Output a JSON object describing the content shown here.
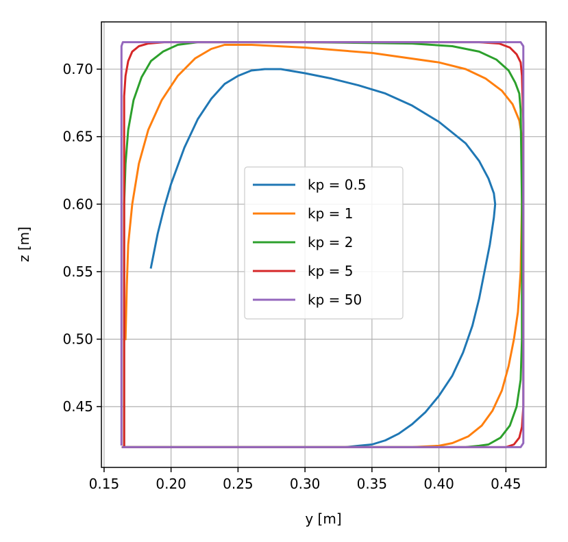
{
  "chart_data": {
    "type": "line",
    "title": "",
    "xlabel": "y [m]",
    "ylabel": "z [m]",
    "xlim": [
      0.148,
      0.48
    ],
    "ylim": [
      0.405,
      0.735
    ],
    "xticks": [
      0.15,
      0.2,
      0.25,
      0.3,
      0.35,
      0.4,
      0.45
    ],
    "xtick_labels": [
      "0.15",
      "0.20",
      "0.25",
      "0.30",
      "0.35",
      "0.40",
      "0.45"
    ],
    "yticks": [
      0.45,
      0.5,
      0.55,
      0.6,
      0.65,
      0.7
    ],
    "ytick_labels": [
      "0.45",
      "0.50",
      "0.55",
      "0.60",
      "0.65",
      "0.70"
    ],
    "grid": true,
    "legend_position": "center",
    "series": [
      {
        "name": "kp = 0.5",
        "color": "#1f77b4",
        "points": [
          [
            0.185,
            0.553
          ],
          [
            0.19,
            0.578
          ],
          [
            0.195,
            0.598
          ],
          [
            0.2,
            0.615
          ],
          [
            0.21,
            0.642
          ],
          [
            0.22,
            0.663
          ],
          [
            0.23,
            0.678
          ],
          [
            0.24,
            0.689
          ],
          [
            0.25,
            0.695
          ],
          [
            0.26,
            0.699
          ],
          [
            0.27,
            0.7
          ],
          [
            0.282,
            0.7
          ],
          [
            0.3,
            0.697
          ],
          [
            0.32,
            0.693
          ],
          [
            0.34,
            0.688
          ],
          [
            0.36,
            0.682
          ],
          [
            0.38,
            0.673
          ],
          [
            0.4,
            0.661
          ],
          [
            0.42,
            0.645
          ],
          [
            0.43,
            0.632
          ],
          [
            0.437,
            0.619
          ],
          [
            0.441,
            0.608
          ],
          [
            0.442,
            0.6
          ],
          [
            0.441,
            0.59
          ],
          [
            0.438,
            0.57
          ],
          [
            0.434,
            0.55
          ],
          [
            0.43,
            0.53
          ],
          [
            0.425,
            0.51
          ],
          [
            0.418,
            0.49
          ],
          [
            0.41,
            0.473
          ],
          [
            0.4,
            0.458
          ],
          [
            0.39,
            0.446
          ],
          [
            0.38,
            0.437
          ],
          [
            0.37,
            0.43
          ],
          [
            0.36,
            0.425
          ],
          [
            0.35,
            0.422
          ],
          [
            0.34,
            0.421
          ],
          [
            0.33,
            0.42
          ],
          [
            0.2,
            0.42
          ],
          [
            0.164,
            0.42
          ]
        ]
      },
      {
        "name": "kp = 1",
        "color": "#ff7f0e",
        "points": [
          [
            0.166,
            0.5
          ],
          [
            0.167,
            0.54
          ],
          [
            0.168,
            0.57
          ],
          [
            0.171,
            0.6
          ],
          [
            0.176,
            0.63
          ],
          [
            0.183,
            0.655
          ],
          [
            0.193,
            0.677
          ],
          [
            0.205,
            0.695
          ],
          [
            0.218,
            0.708
          ],
          [
            0.23,
            0.715
          ],
          [
            0.24,
            0.718
          ],
          [
            0.26,
            0.718
          ],
          [
            0.3,
            0.716
          ],
          [
            0.35,
            0.712
          ],
          [
            0.4,
            0.705
          ],
          [
            0.42,
            0.7
          ],
          [
            0.435,
            0.693
          ],
          [
            0.447,
            0.684
          ],
          [
            0.455,
            0.674
          ],
          [
            0.46,
            0.662
          ],
          [
            0.462,
            0.65
          ],
          [
            0.462,
            0.6
          ],
          [
            0.461,
            0.55
          ],
          [
            0.459,
            0.52
          ],
          [
            0.456,
            0.5
          ],
          [
            0.452,
            0.48
          ],
          [
            0.447,
            0.462
          ],
          [
            0.44,
            0.447
          ],
          [
            0.432,
            0.436
          ],
          [
            0.422,
            0.428
          ],
          [
            0.41,
            0.423
          ],
          [
            0.4,
            0.421
          ],
          [
            0.38,
            0.42
          ],
          [
            0.164,
            0.42
          ]
        ]
      },
      {
        "name": "kp = 2",
        "color": "#2ca02c",
        "points": [
          [
            0.165,
            0.42
          ],
          [
            0.165,
            0.6
          ],
          [
            0.166,
            0.63
          ],
          [
            0.168,
            0.655
          ],
          [
            0.172,
            0.677
          ],
          [
            0.178,
            0.694
          ],
          [
            0.185,
            0.706
          ],
          [
            0.194,
            0.713
          ],
          [
            0.205,
            0.718
          ],
          [
            0.22,
            0.72
          ],
          [
            0.3,
            0.72
          ],
          [
            0.38,
            0.719
          ],
          [
            0.41,
            0.717
          ],
          [
            0.43,
            0.713
          ],
          [
            0.443,
            0.707
          ],
          [
            0.452,
            0.699
          ],
          [
            0.457,
            0.69
          ],
          [
            0.46,
            0.682
          ],
          [
            0.461,
            0.67
          ],
          [
            0.462,
            0.6
          ],
          [
            0.462,
            0.5
          ],
          [
            0.461,
            0.47
          ],
          [
            0.458,
            0.45
          ],
          [
            0.453,
            0.436
          ],
          [
            0.446,
            0.427
          ],
          [
            0.437,
            0.422
          ],
          [
            0.43,
            0.421
          ],
          [
            0.42,
            0.42
          ],
          [
            0.164,
            0.42
          ]
        ]
      },
      {
        "name": "kp = 5",
        "color": "#d62728",
        "points": [
          [
            0.165,
            0.42
          ],
          [
            0.165,
            0.68
          ],
          [
            0.166,
            0.695
          ],
          [
            0.168,
            0.706
          ],
          [
            0.171,
            0.713
          ],
          [
            0.176,
            0.717
          ],
          [
            0.183,
            0.719
          ],
          [
            0.195,
            0.72
          ],
          [
            0.43,
            0.72
          ],
          [
            0.445,
            0.719
          ],
          [
            0.453,
            0.716
          ],
          [
            0.458,
            0.711
          ],
          [
            0.461,
            0.705
          ],
          [
            0.462,
            0.695
          ],
          [
            0.463,
            0.66
          ],
          [
            0.463,
            0.45
          ],
          [
            0.462,
            0.435
          ],
          [
            0.46,
            0.427
          ],
          [
            0.456,
            0.422
          ],
          [
            0.45,
            0.42
          ],
          [
            0.164,
            0.42
          ]
        ]
      },
      {
        "name": "kp = 50",
        "color": "#9467bd",
        "points": [
          [
            0.163,
            0.422
          ],
          [
            0.163,
            0.717
          ],
          [
            0.164,
            0.72
          ],
          [
            0.461,
            0.72
          ],
          [
            0.463,
            0.717
          ],
          [
            0.463,
            0.423
          ],
          [
            0.461,
            0.42
          ],
          [
            0.164,
            0.42
          ]
        ]
      }
    ]
  }
}
